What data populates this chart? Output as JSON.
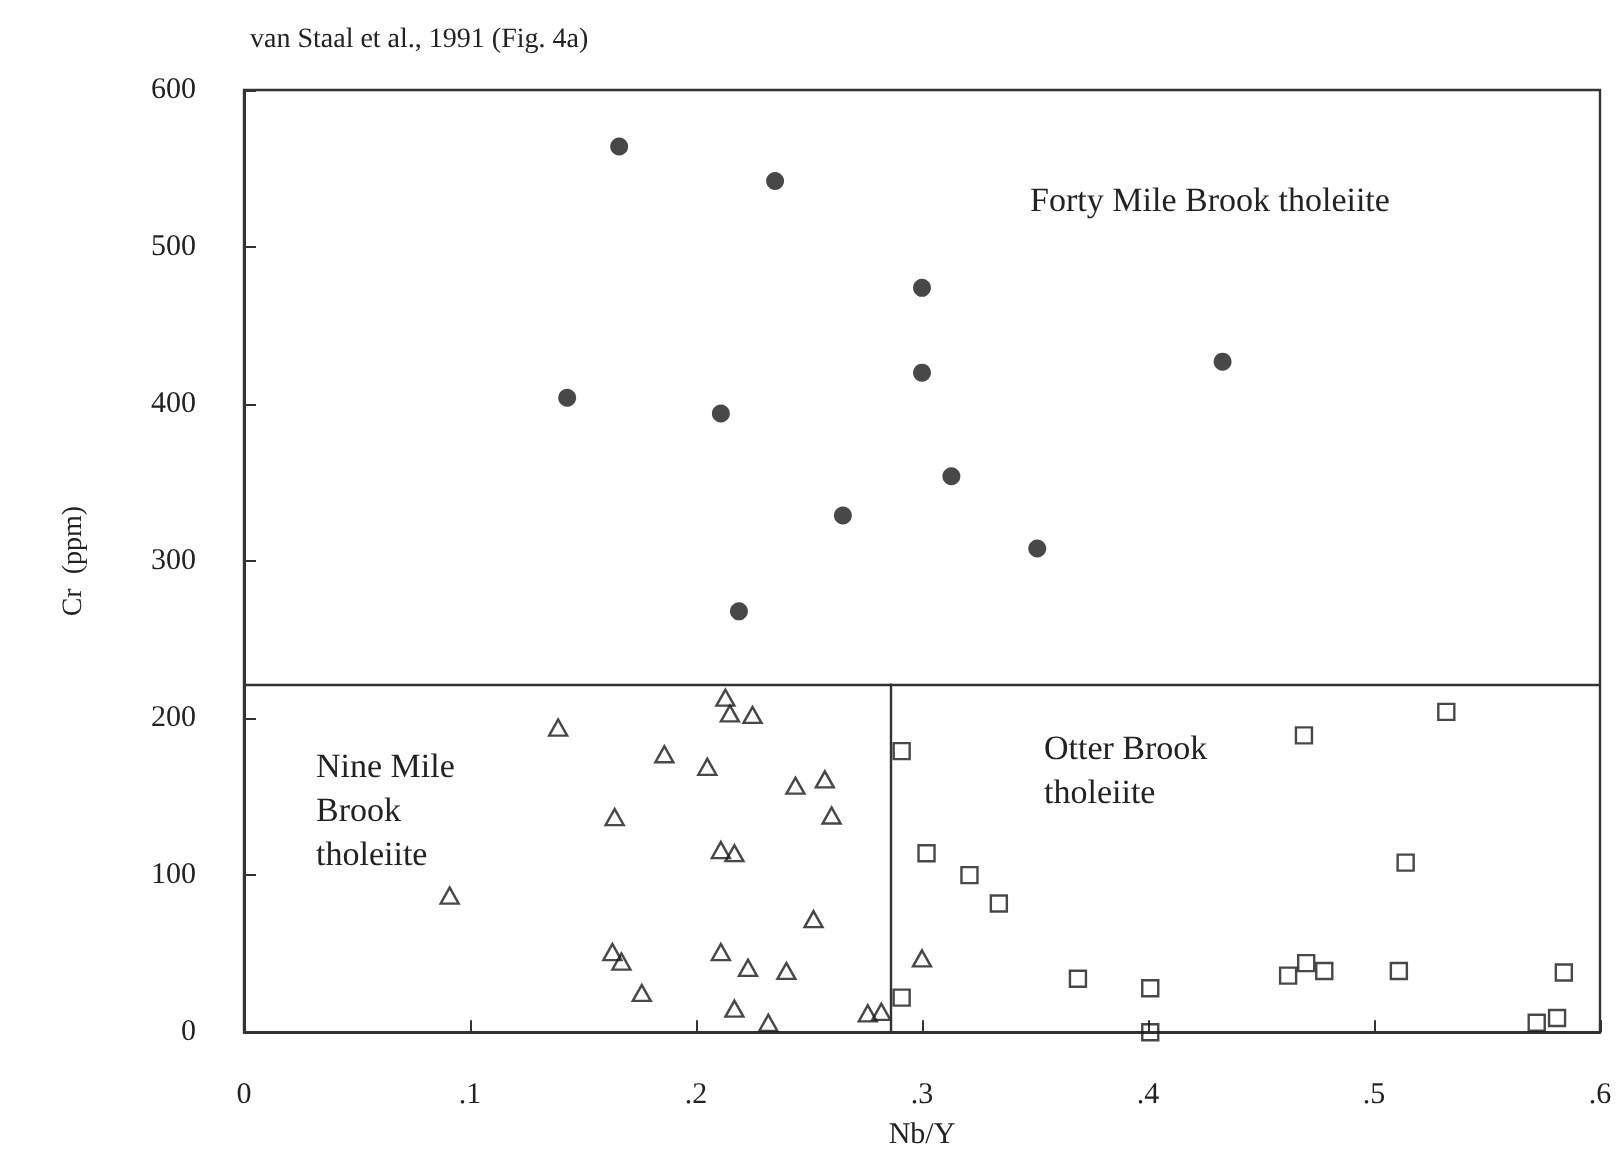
{
  "chart_data": {
    "type": "scatter",
    "title": "van Staal et al., 1991 (Fig. 4a)",
    "xlabel": "Nb/Y",
    "ylabel": "Cr  (ppm)",
    "xlim": [
      0,
      0.6
    ],
    "xticks": [
      0,
      {
        "value": 0.1,
        "label": ".1"
      },
      {
        "value": 0.2,
        "label": ".2"
      },
      {
        "value": 0.3,
        "label": ".3"
      },
      {
        "value": 0.4,
        "label": ".4"
      },
      {
        "value": 0.5,
        "label": ".5"
      },
      {
        "value": 0.6,
        "label": ".6"
      }
    ],
    "ylim": [
      0,
      600
    ],
    "yticks": [
      0,
      100,
      200,
      300,
      400,
      500,
      600
    ],
    "grid": false,
    "ref_lines": [
      {
        "axis": "y",
        "value": 222,
        "color": "#333333"
      },
      {
        "axis": "x",
        "value": 0.286,
        "color": "#333333"
      }
    ],
    "annotations": [
      "Forty Mile Brook tholeiite",
      "Nine Mile\nBrook\ntholeiite",
      "Otter Brook\ntholeiite"
    ],
    "series": [
      {
        "color": "#1a1a1a",
        "marker": "circle",
        "x": [
          0.166,
          0.235,
          0.3,
          0.3,
          0.143,
          0.211,
          0.313,
          0.265,
          0.219,
          0.433,
          0.351
        ],
        "values": [
          564,
          542,
          474,
          420,
          404,
          394,
          354,
          329,
          268,
          427,
          308
        ]
      },
      {
        "color": "#1a1a1a",
        "marker": "triangle",
        "x": [
          0.213,
          0.215,
          0.225,
          0.139,
          0.186,
          0.205,
          0.244,
          0.257,
          0.26,
          0.164,
          0.211,
          0.217,
          0.091,
          0.252,
          0.163,
          0.167,
          0.211,
          0.223,
          0.24,
          0.176,
          0.217,
          0.232,
          0.276,
          0.282,
          0.3
        ],
        "values": [
          213,
          203,
          202,
          194,
          177,
          169,
          157,
          161,
          138,
          137,
          116,
          114,
          87,
          72,
          51,
          45,
          51,
          41,
          39,
          25,
          15,
          6,
          12,
          13,
          47
        ]
      },
      {
        "color": "#1a1a1a",
        "marker": "square",
        "x": [
          0.291,
          0.302,
          0.321,
          0.334,
          0.369,
          0.401,
          0.401,
          0.291,
          0.469,
          0.532,
          0.514,
          0.462,
          0.47,
          0.478,
          0.511,
          0.584,
          0.572,
          0.581
        ],
        "values": [
          179,
          114,
          100,
          82,
          34,
          28,
          0,
          22,
          189,
          204,
          108,
          36,
          44,
          39,
          39,
          38,
          6,
          9
        ]
      }
    ]
  }
}
